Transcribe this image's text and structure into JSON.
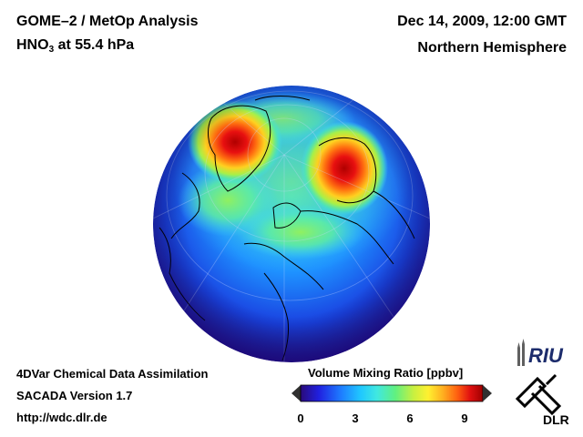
{
  "header": {
    "title_line1": "GOME–2 / MetOp Analysis",
    "species_main": "HNO",
    "species_sub": "3",
    "species_rest": " at 55.4 hPa",
    "datetime": "Dec 14, 2009, 12:00 GMT",
    "region": "Northern Hemisphere"
  },
  "footer": {
    "line1": "4DVar Chemical Data Assimilation",
    "line2": "SACADA Version 1.7",
    "line3": "http://wdc.dlr.de"
  },
  "colorbar": {
    "title": "Volume Mixing Ratio [ppbv]",
    "min": 0,
    "max": 10,
    "ticks": [
      "0",
      "3",
      "6",
      "9"
    ],
    "colors": [
      "#2a0a7a",
      "#2020e0",
      "#1e7bff",
      "#20c8ff",
      "#40e8e0",
      "#60f080",
      "#c8f040",
      "#fff030",
      "#ffb020",
      "#ff6010",
      "#e01010",
      "#a00000"
    ]
  },
  "logos": {
    "riu": "RIU",
    "dlr": "DLR"
  },
  "map": {
    "projection": "orthographic-north-polar",
    "hotspots": [
      {
        "name": "greenland-maximum",
        "value_ppbv": 9.5
      },
      {
        "name": "siberia-maximum",
        "value_ppbv": 9.0
      }
    ]
  }
}
